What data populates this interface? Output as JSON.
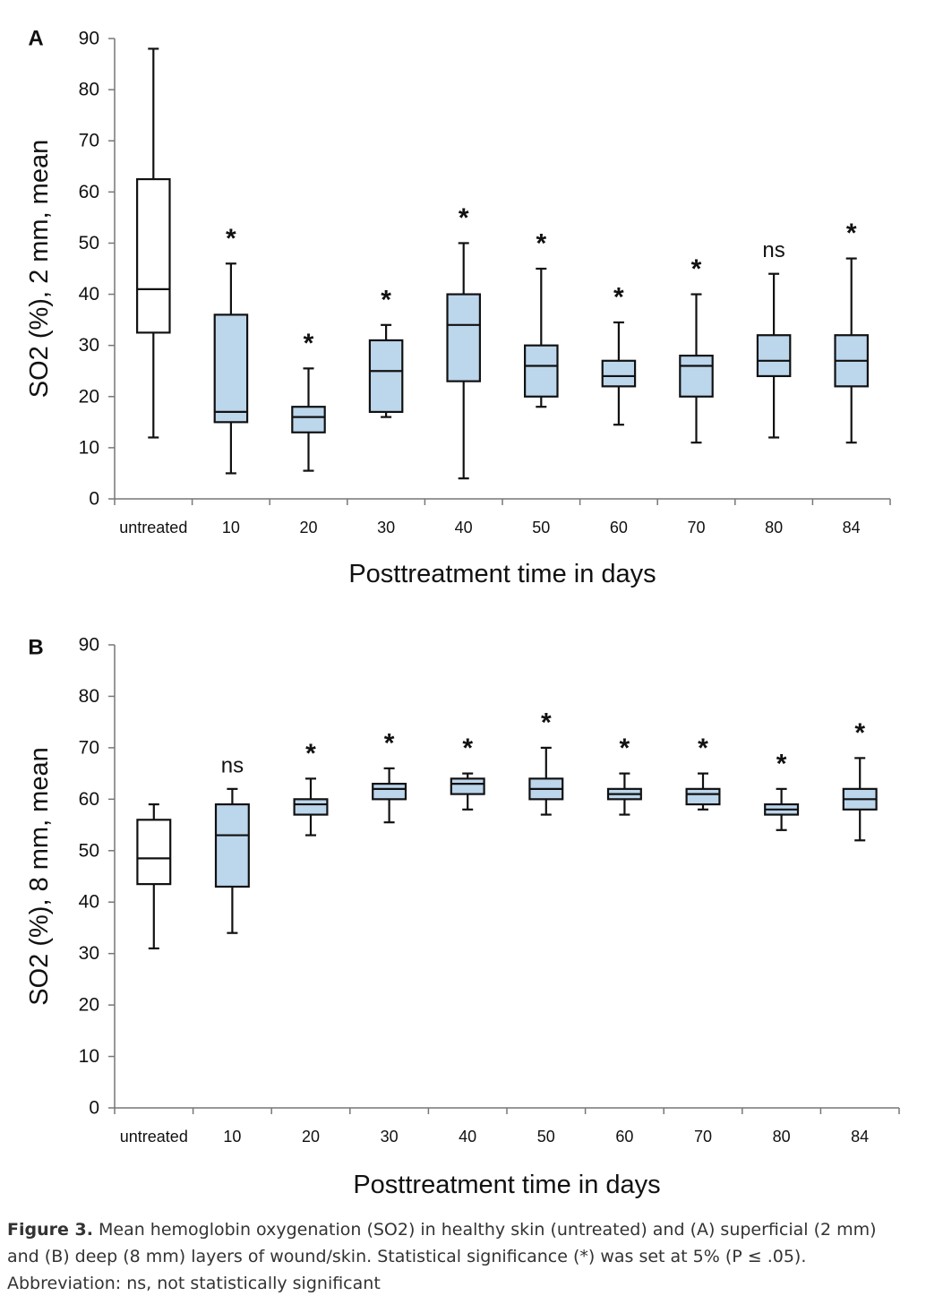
{
  "chart_data": [
    {
      "type": "box",
      "panel_label": "A",
      "ylabel": "SO2 (%), 2 mm, mean",
      "xlabel": "Posttreatment time in days",
      "ylim": [
        0,
        90
      ],
      "yticks": [
        0,
        10,
        20,
        30,
        40,
        50,
        60,
        70,
        80,
        90
      ],
      "categories": [
        "untreated",
        "10",
        "20",
        "30",
        "40",
        "50",
        "60",
        "70",
        "80",
        "84"
      ],
      "boxes": [
        {
          "min": 12,
          "q1": 32.5,
          "median": 41,
          "q3": 62.5,
          "max": 88,
          "fill": "#ffffff",
          "annotation": ""
        },
        {
          "min": 5,
          "q1": 15,
          "median": 17,
          "q3": 36,
          "max": 46,
          "fill": "#bcd6ec",
          "annotation": "*"
        },
        {
          "min": 5.5,
          "q1": 13,
          "median": 16,
          "q3": 18,
          "max": 25.5,
          "fill": "#bcd6ec",
          "annotation": "*"
        },
        {
          "min": 16,
          "q1": 17,
          "median": 25,
          "q3": 31,
          "max": 34,
          "fill": "#bcd6ec",
          "annotation": "*"
        },
        {
          "min": 4,
          "q1": 23,
          "median": 34,
          "q3": 40,
          "max": 50,
          "fill": "#bcd6ec",
          "annotation": "*"
        },
        {
          "min": 18,
          "q1": 20,
          "median": 26,
          "q3": 30,
          "max": 45,
          "fill": "#bcd6ec",
          "annotation": "*"
        },
        {
          "min": 14.5,
          "q1": 22,
          "median": 24,
          "q3": 27,
          "max": 34.5,
          "fill": "#bcd6ec",
          "annotation": "*"
        },
        {
          "min": 11,
          "q1": 20,
          "median": 26,
          "q3": 28,
          "max": 40,
          "fill": "#bcd6ec",
          "annotation": "*"
        },
        {
          "min": 12,
          "q1": 24,
          "median": 27,
          "q3": 32,
          "max": 44,
          "fill": "#bcd6ec",
          "annotation": "ns"
        },
        {
          "min": 11,
          "q1": 22,
          "median": 27,
          "q3": 32,
          "max": 47,
          "fill": "#bcd6ec",
          "annotation": "*"
        }
      ]
    },
    {
      "type": "box",
      "panel_label": "B",
      "ylabel": "SO2 (%), 8 mm, mean",
      "xlabel": "Posttreatment time in days",
      "ylim": [
        0,
        90
      ],
      "yticks": [
        0,
        10,
        20,
        30,
        40,
        50,
        60,
        70,
        80,
        90
      ],
      "categories": [
        "untreated",
        "10",
        "20",
        "30",
        "40",
        "50",
        "60",
        "70",
        "80",
        "84"
      ],
      "boxes": [
        {
          "min": 31,
          "q1": 43.5,
          "median": 48.5,
          "q3": 56,
          "max": 59,
          "fill": "#ffffff",
          "annotation": ""
        },
        {
          "min": 34,
          "q1": 43,
          "median": 53,
          "q3": 59,
          "max": 62,
          "fill": "#bcd6ec",
          "annotation": "ns"
        },
        {
          "min": 53,
          "q1": 57,
          "median": 59,
          "q3": 60,
          "max": 64,
          "fill": "#bcd6ec",
          "annotation": "*"
        },
        {
          "min": 55.5,
          "q1": 60,
          "median": 62,
          "q3": 63,
          "max": 66,
          "fill": "#bcd6ec",
          "annotation": "*"
        },
        {
          "min": 58,
          "q1": 61,
          "median": 63,
          "q3": 64,
          "max": 65,
          "fill": "#bcd6ec",
          "annotation": "*"
        },
        {
          "min": 57,
          "q1": 60,
          "median": 62,
          "q3": 64,
          "max": 70,
          "fill": "#bcd6ec",
          "annotation": "*"
        },
        {
          "min": 57,
          "q1": 60,
          "median": 61,
          "q3": 62,
          "max": 65,
          "fill": "#bcd6ec",
          "annotation": "*"
        },
        {
          "min": 58,
          "q1": 59,
          "median": 61,
          "q3": 62,
          "max": 65,
          "fill": "#bcd6ec",
          "annotation": "*"
        },
        {
          "min": 54,
          "q1": 57,
          "median": 58,
          "q3": 59,
          "max": 62,
          "fill": "#bcd6ec",
          "annotation": "*"
        },
        {
          "min": 52,
          "q1": 58,
          "median": 60,
          "q3": 62,
          "max": 68,
          "fill": "#bcd6ec",
          "annotation": "*"
        }
      ]
    }
  ],
  "caption": {
    "figure_label": "Figure 3.",
    "text": "Mean hemoglobin oxygenation (SO2) in healthy skin (untreated) and (A) superficial (2 mm) and (B) deep (8 mm) layers of wound/skin. Statistical significance (*) was set at 5% (P ≤ .05). Abbreviation: ns, not statistically significant"
  }
}
